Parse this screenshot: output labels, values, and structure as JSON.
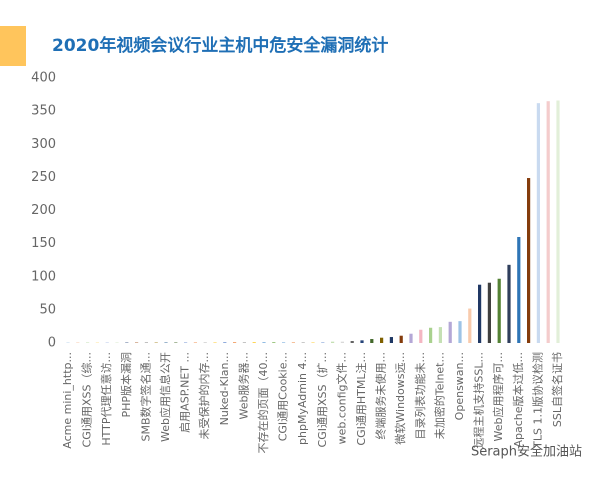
{
  "chart_data": {
    "type": "bar",
    "title": "2020年视频会议行业主机中危安全漏洞统计",
    "watermark": "Seraph安全加油站",
    "categories": [
      "Acme mini_http...",
      null,
      "CGI通用XSS（综...",
      null,
      "HTTP代理任意访...",
      null,
      "PHP版本漏洞",
      null,
      "SMB数字签名通...",
      null,
      "Web应用信息公开",
      null,
      "启用ASP.NET ...",
      null,
      "未受保护的内存...",
      null,
      "Nuked-Klan...",
      null,
      "Web服务器...",
      null,
      "不存在的页面（40...",
      null,
      "CGI通用Cookie...",
      null,
      "phpMyAdmin 4...",
      null,
      "CGI通用XSS（扩...",
      null,
      "web.config文件...",
      null,
      "CGI通用HTML注...",
      null,
      "终端服务未使用...",
      null,
      "微软Windows远...",
      null,
      "目录列表功能未...",
      null,
      "未加密的Telnet...",
      null,
      "Openswan...",
      null,
      "远程主机支持SSL...",
      null,
      "Web应用程序可...",
      null,
      "Apache版本过低...",
      null,
      "TLS 1.1版协议检测",
      null,
      "SSL自签名证书"
    ],
    "values": [
      0.5,
      0.5,
      0.5,
      0.5,
      0.5,
      0.5,
      0.6,
      0.6,
      0.6,
      0.6,
      0.7,
      0.7,
      0.7,
      0.8,
      0.8,
      0.8,
      0.9,
      1,
      1,
      1,
      1,
      1,
      1.2,
      1.2,
      1.5,
      1.5,
      1.5,
      2,
      2,
      3,
      4,
      6,
      8,
      9,
      11,
      14,
      20,
      23,
      24,
      32,
      33,
      52,
      88,
      91,
      97,
      118,
      160,
      249,
      362,
      365,
      366
    ],
    "colors": [
      "#9dc3e6",
      "#f4b183",
      "#a9d18e",
      "#ffd966",
      "#8faadc",
      "#c5e0b4",
      "#264478",
      "#9e480e",
      "#636363",
      "#997300",
      "#255e91",
      "#43682b",
      "#698ed0",
      "#f1975a",
      "#b7b7b7",
      "#ffcd33",
      "#4472c4",
      "#ed7d31",
      "#a5a5a5",
      "#ffc000",
      "#5b9bd5",
      "#70ad47",
      "#9dc3e6",
      "#f4b183",
      "#c9c9c9",
      "#ffe699",
      "#b4c7e7",
      "#c5e0b4",
      "#d9d9d9",
      "#636363",
      "#264478",
      "#43682b",
      "#7f6000",
      "#1f3864",
      "#843c0c",
      "#b4a7d6",
      "#f4b6c2",
      "#a9d18e",
      "#c5e0b4",
      "#b4a7d6",
      "#9dc3e6",
      "#f8cbad",
      "#203864",
      "#404040",
      "#548235",
      "#2f3e5c",
      "#2e75b6",
      "#843c0c",
      "#c9daf0",
      "#f4cccc",
      "#e2efd9"
    ],
    "ylim": [
      0,
      400
    ],
    "yticks": [
      0,
      50,
      100,
      150,
      200,
      250,
      300,
      350,
      400
    ],
    "grid": false
  }
}
